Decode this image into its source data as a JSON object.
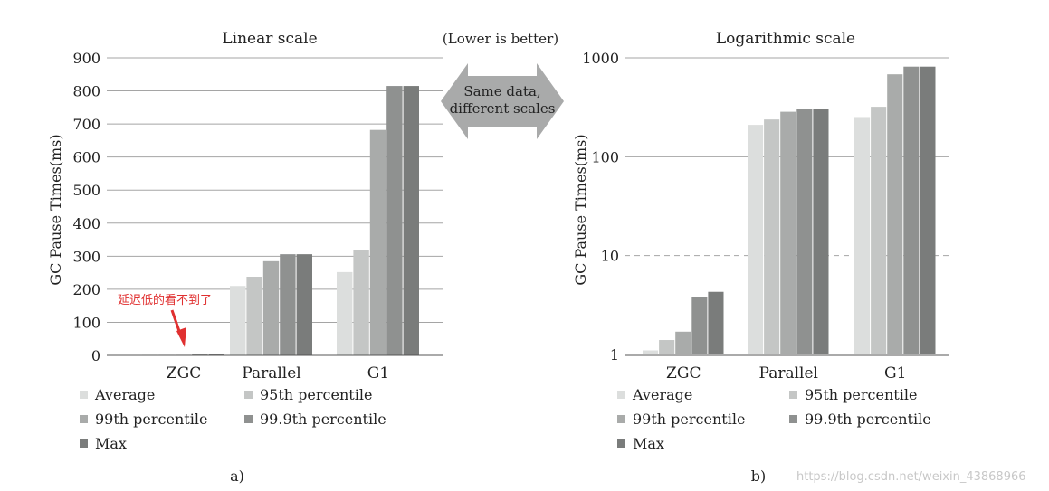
{
  "header_note": "(Lower is better)",
  "center_arrow": {
    "line1": "Same data,",
    "line2": "different scales"
  },
  "annotation": "延迟低的看不到了",
  "watermark": "https://blog.csdn.net/weixin_43868966",
  "legend": [
    "Average",
    "95th percentile",
    "99th percentile",
    "99.9th percentile",
    "Max"
  ],
  "colors": {
    "series": [
      "#dcdedd",
      "#c4c6c5",
      "#a9abaa",
      "#8f9190",
      "#7a7c7b"
    ],
    "annotation": "#e03030",
    "gridline": "#a5a5a5"
  },
  "chart_data": [
    {
      "type": "bar",
      "title": "Linear scale",
      "ylabel": "GC Pause Times(ms)",
      "sublabel": "a)",
      "categories": [
        "ZGC",
        "Parallel",
        "G1"
      ],
      "ylim": [
        0,
        900
      ],
      "yscale": "linear",
      "yticks": [
        0,
        100,
        200,
        300,
        400,
        500,
        600,
        700,
        800,
        900
      ],
      "grid": true,
      "legend_position": "bottom",
      "series": [
        {
          "name": "Average",
          "values": [
            1.1,
            210,
            252
          ]
        },
        {
          "name": "95th percentile",
          "values": [
            1.4,
            238,
            320
          ]
        },
        {
          "name": "99th percentile",
          "values": [
            1.7,
            285,
            682
          ]
        },
        {
          "name": "99.9th percentile",
          "values": [
            3.8,
            306,
            815
          ]
        },
        {
          "name": "Max",
          "values": [
            4.3,
            306,
            815
          ]
        }
      ]
    },
    {
      "type": "bar",
      "title": "Logarithmic scale",
      "ylabel": "GC Pause Times(ms)",
      "sublabel": "b)",
      "categories": [
        "ZGC",
        "Parallel",
        "G1"
      ],
      "ylim": [
        1,
        1000
      ],
      "yscale": "log",
      "yticks": [
        1,
        10,
        100,
        1000
      ],
      "grid": true,
      "legend_position": "bottom",
      "series": [
        {
          "name": "Average",
          "values": [
            1.1,
            210,
            252
          ]
        },
        {
          "name": "95th percentile",
          "values": [
            1.4,
            238,
            320
          ]
        },
        {
          "name": "99th percentile",
          "values": [
            1.7,
            285,
            682
          ]
        },
        {
          "name": "99.9th percentile",
          "values": [
            3.8,
            306,
            815
          ]
        },
        {
          "name": "Max",
          "values": [
            4.3,
            306,
            815
          ]
        }
      ]
    }
  ]
}
